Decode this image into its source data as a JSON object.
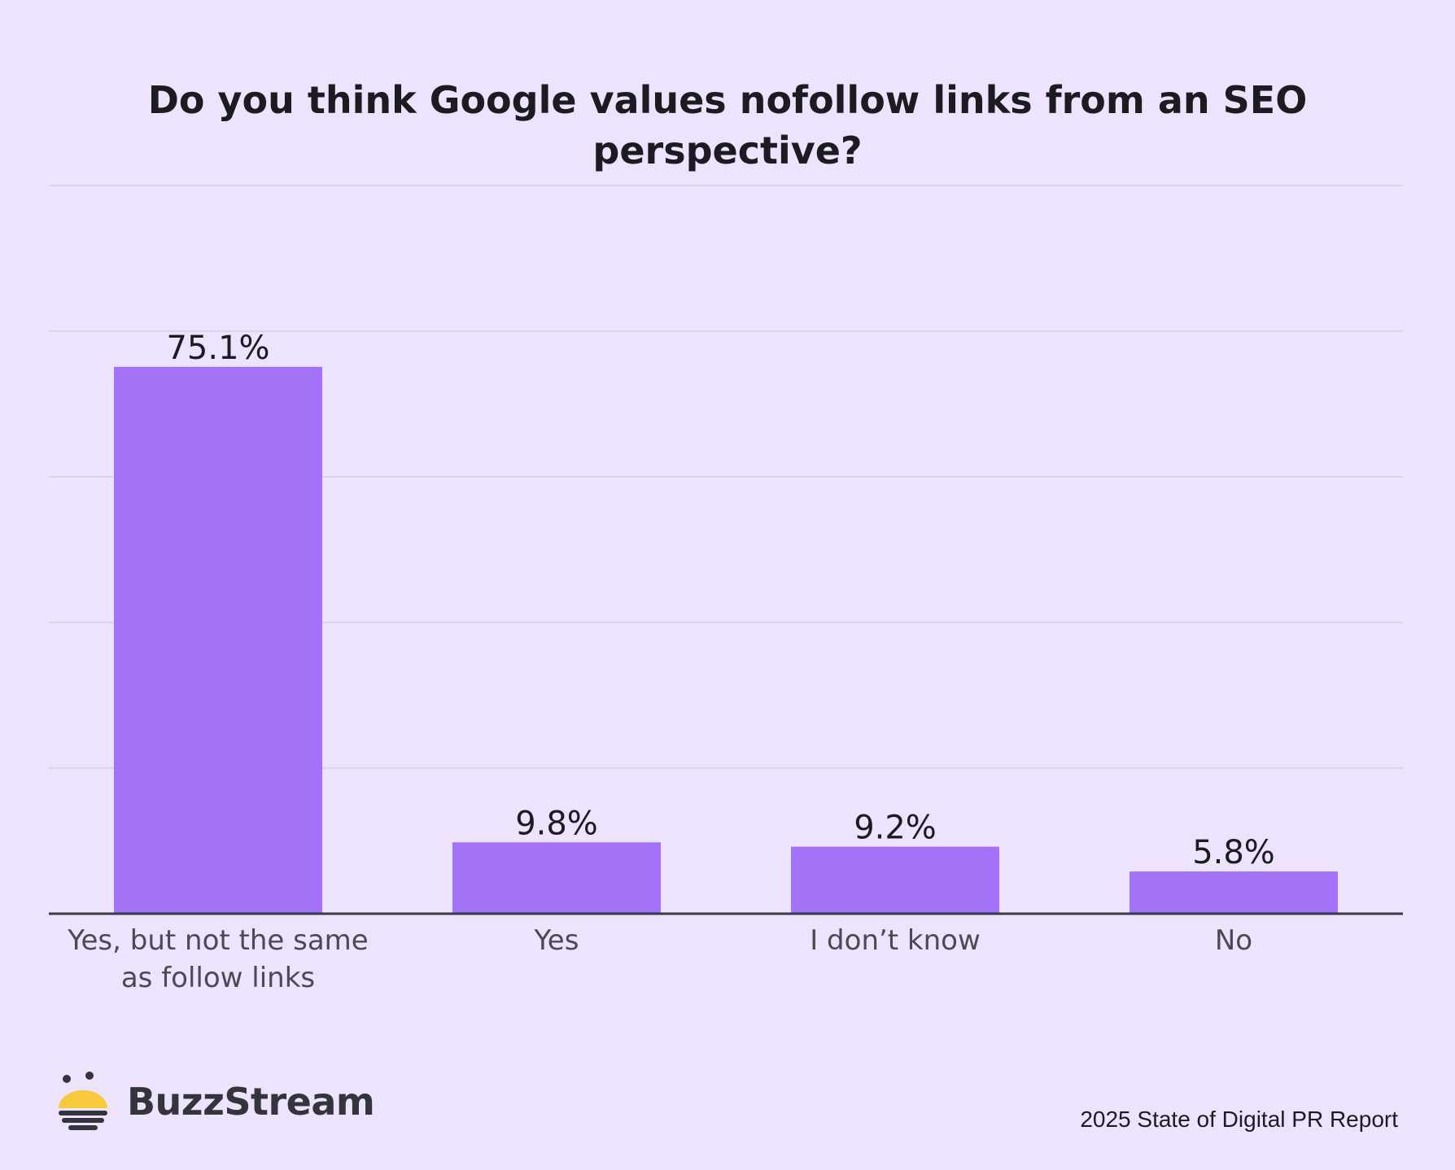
{
  "chart_data": {
    "type": "bar",
    "title": "Do you think Google values nofollow links from an SEO perspective?",
    "categories": [
      [
        "Yes, but not the same",
        "as follow links"
      ],
      [
        "Yes"
      ],
      [
        "I don’t know"
      ],
      [
        "No"
      ]
    ],
    "values": [
      75.1,
      9.8,
      9.2,
      5.8
    ],
    "value_labels": [
      "75.1%",
      "9.8%",
      "9.2%",
      "5.8%"
    ],
    "ylim": [
      0,
      100
    ],
    "grid": true,
    "xlabel": "",
    "ylabel": ""
  },
  "colors": {
    "background": "#ede3fc",
    "bar": "#a372f6",
    "grid": "#d8cdea",
    "axis": "#3a3a44",
    "text": "#1d1b22",
    "tick_text": "#4a4a52",
    "logo_yellow": "#f8c93a",
    "logo_dark": "#34343c"
  },
  "footer": {
    "brand": "BuzzStream",
    "report": "2025 State of Digital PR Report"
  },
  "icons": {
    "logo": "buzzstream-bee-logo-icon"
  }
}
